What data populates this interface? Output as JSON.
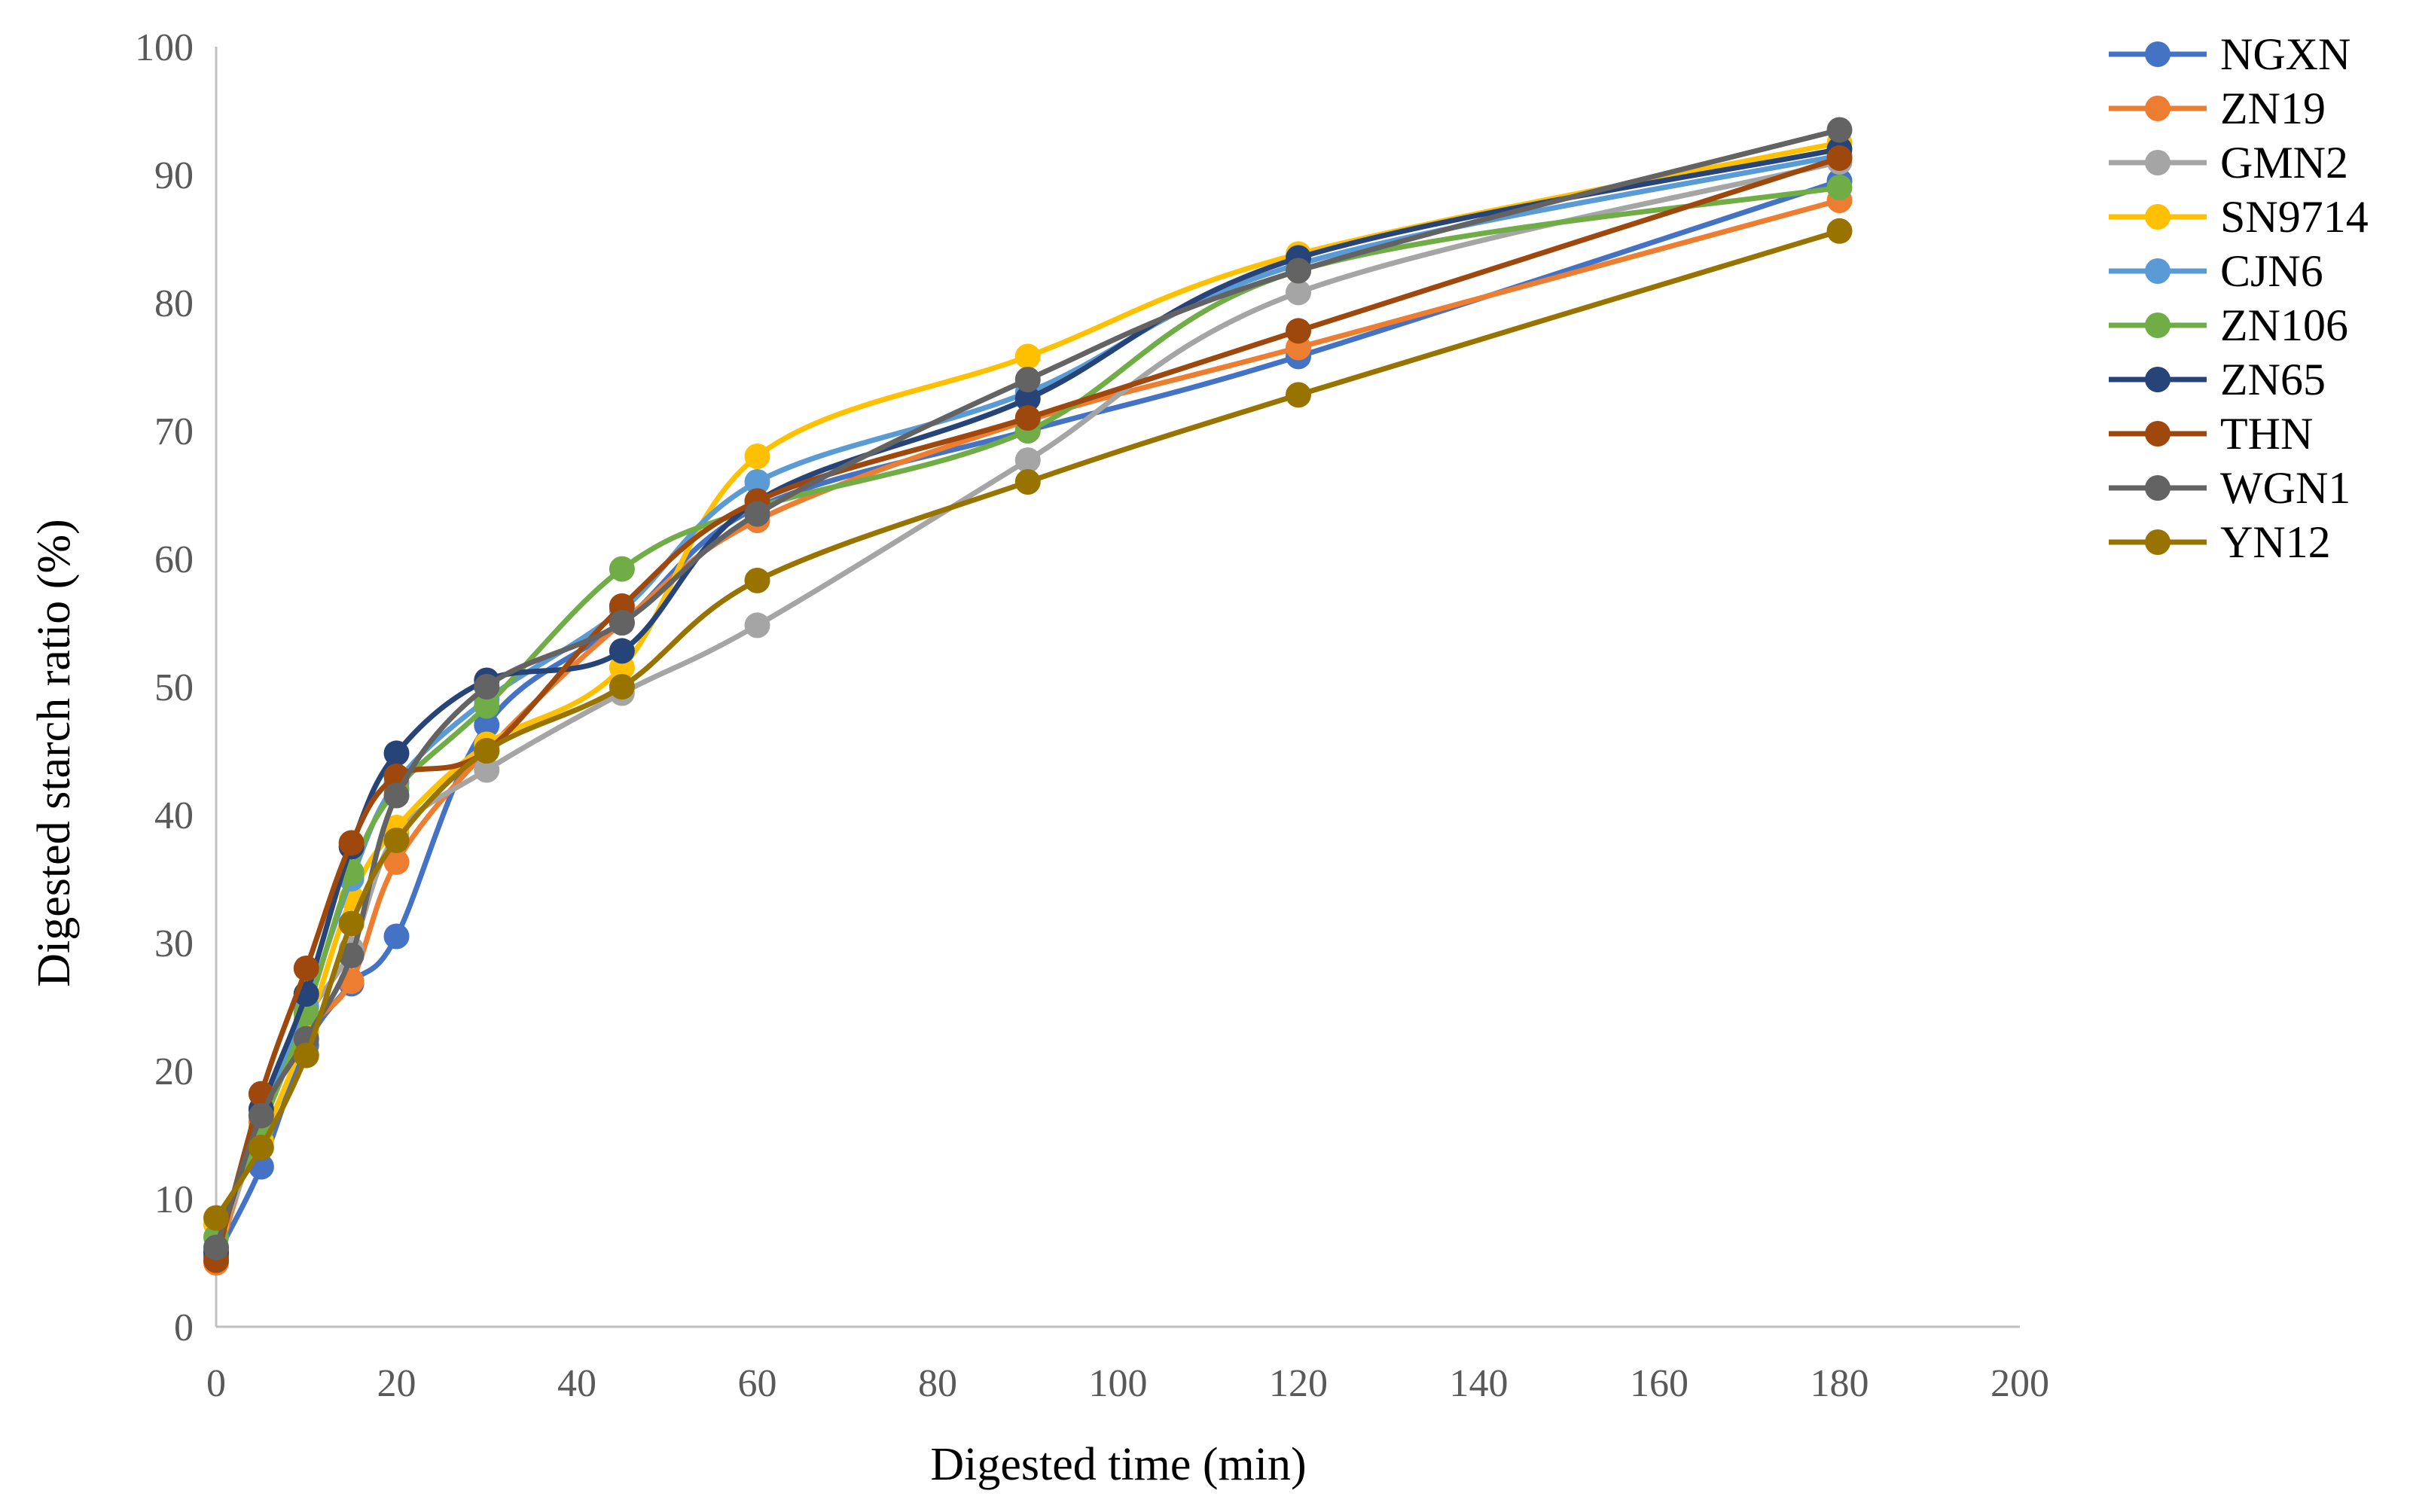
{
  "chart_data": {
    "type": "line",
    "title": "",
    "xlabel": "Digested time (min)",
    "ylabel": "Digested starch ratio (%)",
    "xlim": [
      0,
      200
    ],
    "ylim": [
      0,
      100
    ],
    "x_ticks": [
      0,
      20,
      40,
      60,
      80,
      100,
      120,
      140,
      160,
      180,
      200
    ],
    "y_ticks": [
      0,
      10,
      20,
      30,
      40,
      50,
      60,
      70,
      80,
      90,
      100
    ],
    "grid": false,
    "legend_position": "right",
    "x": [
      0,
      5,
      10,
      15,
      20,
      30,
      45,
      60,
      90,
      120,
      180
    ],
    "series": [
      {
        "name": "NGXN",
        "color": "#4472C4",
        "values": [
          5.5,
          12.5,
          22.0,
          26.8,
          30.5,
          47.0,
          55.0,
          64.0,
          70.0,
          75.8,
          89.5
        ]
      },
      {
        "name": "ZN19",
        "color": "#ED7D31",
        "values": [
          5.0,
          16.0,
          23.0,
          27.0,
          36.3,
          45.0,
          55.0,
          63.0,
          70.8,
          76.5,
          88.0
        ]
      },
      {
        "name": "GMN2",
        "color": "#A5A5A5",
        "values": [
          6.0,
          15.5,
          24.0,
          29.5,
          38.5,
          43.5,
          49.5,
          54.8,
          67.7,
          80.8,
          91.0
        ]
      },
      {
        "name": "SN9714",
        "color": "#FFC000",
        "values": [
          8.0,
          14.5,
          23.0,
          33.5,
          39.0,
          45.5,
          51.5,
          68.0,
          75.8,
          83.8,
          92.5
        ]
      },
      {
        "name": "CJN6",
        "color": "#5B9BD5",
        "values": [
          6.0,
          16.5,
          25.0,
          35.0,
          42.5,
          49.0,
          56.0,
          66.0,
          73.0,
          83.0,
          91.5
        ]
      },
      {
        "name": "ZN106",
        "color": "#70AD47",
        "values": [
          7.0,
          15.5,
          24.5,
          35.5,
          42.0,
          48.5,
          59.2,
          64.0,
          70.0,
          82.5,
          89.0
        ]
      },
      {
        "name": "ZN65",
        "color": "#264478",
        "values": [
          5.8,
          17.0,
          26.0,
          37.5,
          44.8,
          50.5,
          52.8,
          64.5,
          72.5,
          83.5,
          92.0
        ]
      },
      {
        "name": "THN",
        "color": "#9E480E",
        "values": [
          5.2,
          18.2,
          28.0,
          37.8,
          43.0,
          45.0,
          56.3,
          64.5,
          71.0,
          77.8,
          91.3
        ]
      },
      {
        "name": "WGN1",
        "color": "#636363",
        "values": [
          6.2,
          16.5,
          22.5,
          29.0,
          41.5,
          50.0,
          55.0,
          63.5,
          74.0,
          82.5,
          93.5
        ]
      },
      {
        "name": "YN12",
        "color": "#997300",
        "values": [
          8.5,
          14.0,
          21.2,
          31.5,
          38.0,
          45.0,
          50.0,
          58.3,
          66.0,
          72.8,
          85.6
        ]
      }
    ]
  }
}
